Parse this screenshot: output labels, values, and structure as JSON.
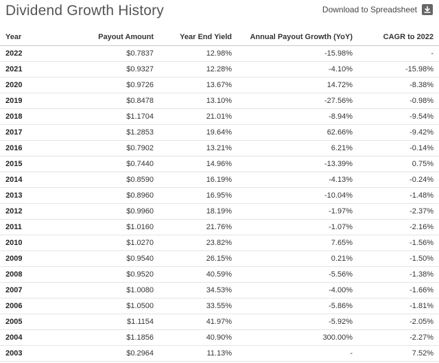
{
  "title": "Dividend Growth History",
  "download": {
    "label": "Download to Spreadsheet",
    "icon": "download-icon"
  },
  "table": {
    "headers": [
      "Year",
      "Payout Amount",
      "Year End Yield",
      "Annual Payout Growth (YoY)",
      "CAGR to 2022"
    ],
    "rows": [
      [
        "2022",
        "$0.7837",
        "12.98%",
        "-15.98%",
        "-"
      ],
      [
        "2021",
        "$0.9327",
        "12.28%",
        "-4.10%",
        "-15.98%"
      ],
      [
        "2020",
        "$0.9726",
        "13.67%",
        "14.72%",
        "-8.38%"
      ],
      [
        "2019",
        "$0.8478",
        "13.10%",
        "-27.56%",
        "-0.98%"
      ],
      [
        "2018",
        "$1.1704",
        "21.01%",
        "-8.94%",
        "-9.54%"
      ],
      [
        "2017",
        "$1.2853",
        "19.64%",
        "62.66%",
        "-9.42%"
      ],
      [
        "2016",
        "$0.7902",
        "13.21%",
        "6.21%",
        "-0.14%"
      ],
      [
        "2015",
        "$0.7440",
        "14.96%",
        "-13.39%",
        "0.75%"
      ],
      [
        "2014",
        "$0.8590",
        "16.19%",
        "-4.13%",
        "-0.24%"
      ],
      [
        "2013",
        "$0.8960",
        "16.95%",
        "-10.04%",
        "-1.48%"
      ],
      [
        "2012",
        "$0.9960",
        "18.19%",
        "-1.97%",
        "-2.37%"
      ],
      [
        "2011",
        "$1.0160",
        "21.76%",
        "-1.07%",
        "-2.16%"
      ],
      [
        "2010",
        "$1.0270",
        "23.82%",
        "7.65%",
        "-1.56%"
      ],
      [
        "2009",
        "$0.9540",
        "26.15%",
        "0.21%",
        "-1.50%"
      ],
      [
        "2008",
        "$0.9520",
        "40.59%",
        "-5.56%",
        "-1.38%"
      ],
      [
        "2007",
        "$1.0080",
        "34.53%",
        "-4.00%",
        "-1.66%"
      ],
      [
        "2006",
        "$1.0500",
        "33.55%",
        "-5.86%",
        "-1.81%"
      ],
      [
        "2005",
        "$1.1154",
        "41.97%",
        "-5.92%",
        "-2.05%"
      ],
      [
        "2004",
        "$1.1856",
        "40.90%",
        "300.00%",
        "-2.27%"
      ],
      [
        "2003",
        "$0.2964",
        "11.13%",
        "-",
        "7.52%"
      ]
    ]
  }
}
